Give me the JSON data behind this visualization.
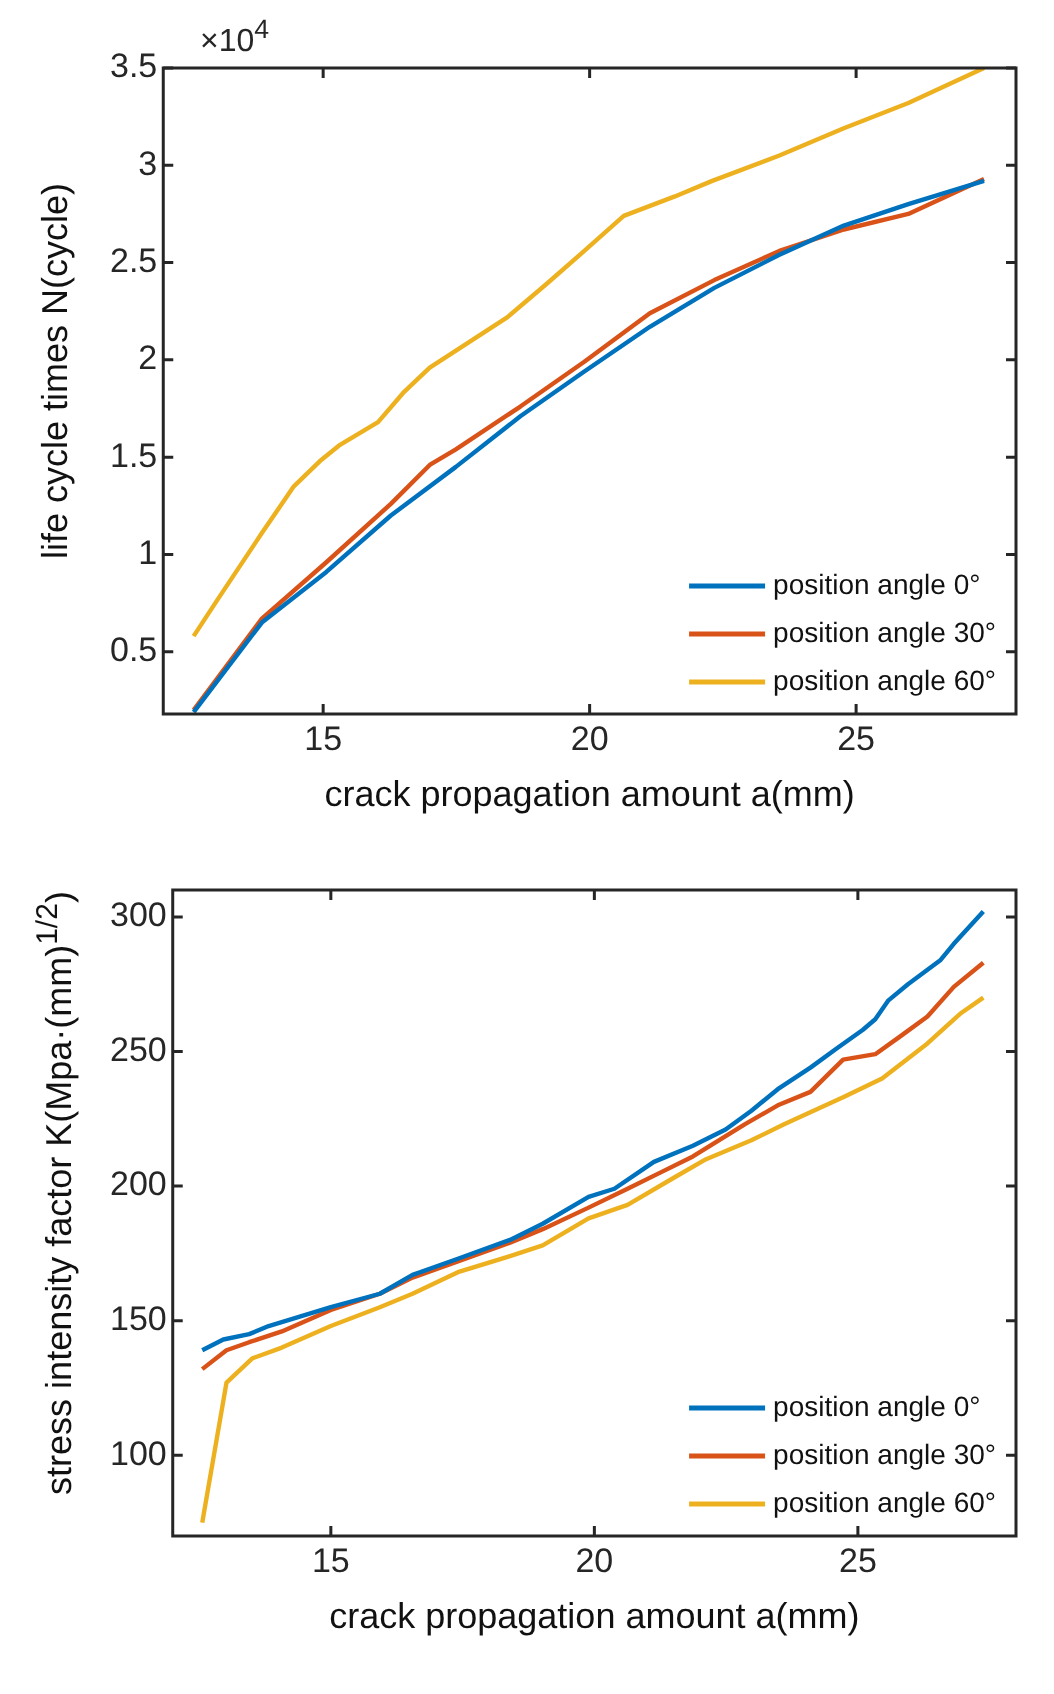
{
  "chart_data": [
    {
      "type": "line",
      "xlabel": "crack propagation amount a(mm)",
      "ylabel": "life cycle times N(cycle)",
      "annotations": [
        "×10$^{4}$"
      ],
      "xlim": [
        12,
        28
      ],
      "ylim": [
        0.18,
        3.5
      ],
      "xticks": [
        15,
        20,
        25
      ],
      "yticks": [
        0.5,
        1,
        1.5,
        2,
        2.5,
        3,
        3.5
      ],
      "grid": false,
      "legend": "bottom right",
      "series": [
        {
          "name": "position angle 0°",
          "color": "#0072bd",
          "x": [
            12.57,
            13.85,
            15.06,
            16.27,
            17.49,
            18.7,
            19.9,
            21.13,
            22.34,
            23.56,
            24.77,
            25.98,
            27.4
          ],
          "values": [
            0.19,
            0.65,
            0.91,
            1.2,
            1.45,
            1.71,
            1.94,
            2.17,
            2.37,
            2.54,
            2.69,
            2.8,
            2.92
          ]
        },
        {
          "name": "position angle 30°",
          "color": "#d95319",
          "x": [
            12.57,
            13.85,
            15.06,
            16.27,
            17.0,
            17.49,
            18.7,
            19.9,
            21.13,
            22.34,
            23.56,
            24.77,
            25.98,
            27.4
          ],
          "values": [
            0.2,
            0.67,
            0.96,
            1.26,
            1.46,
            1.54,
            1.76,
            1.99,
            2.24,
            2.41,
            2.56,
            2.67,
            2.75,
            2.93
          ]
        },
        {
          "name": "position angle 60°",
          "color": "#edb120",
          "x": [
            12.57,
            13.0,
            13.85,
            14.45,
            14.94,
            15.3,
            16.03,
            16.5,
            17.0,
            17.73,
            18.46,
            19.19,
            19.9,
            20.64,
            21.6,
            22.3,
            23.56,
            24.77,
            25.98,
            27.4
          ],
          "values": [
            0.58,
            0.76,
            1.11,
            1.35,
            1.48,
            1.56,
            1.68,
            1.83,
            1.96,
            2.09,
            2.22,
            2.39,
            2.56,
            2.74,
            2.84,
            2.92,
            3.05,
            3.19,
            3.32,
            3.5
          ]
        }
      ]
    },
    {
      "type": "line",
      "xlabel": "crack propagation amount a(mm)",
      "ylabel": "stress intensity factor K(Mpa·(mm)$^{1/2}$)",
      "xlim": [
        12,
        28
      ],
      "ylim": [
        70,
        310
      ],
      "xticks": [
        15,
        20,
        25
      ],
      "yticks": [
        100,
        150,
        200,
        250,
        300
      ],
      "grid": false,
      "legend": "bottom right",
      "series": [
        {
          "name": "position angle 0°",
          "color": "#0072bd",
          "x": [
            12.56,
            12.96,
            13.45,
            13.82,
            15,
            15.93,
            16.55,
            17.41,
            18.4,
            19.02,
            19.89,
            20.38,
            21.13,
            21.87,
            22.49,
            22.98,
            23.48,
            24.1,
            24.59,
            25.09,
            25.33,
            25.58,
            25.95,
            26.57,
            26.82,
            27.38
          ],
          "values": [
            139,
            143,
            145,
            148,
            155,
            160,
            167,
            173,
            180,
            186,
            196,
            199,
            209,
            215,
            221,
            228,
            236,
            244,
            251,
            258,
            262,
            269,
            275,
            284,
            290,
            302
          ]
        },
        {
          "name": "position angle 30°",
          "color": "#d95319",
          "x": [
            12.56,
            13.02,
            13.45,
            14.07,
            15,
            15.93,
            16.55,
            17.41,
            18.4,
            19.02,
            19.89,
            20.63,
            21.25,
            21.87,
            22.86,
            23.48,
            24.1,
            24.72,
            25.33,
            25.83,
            26.32,
            26.82,
            27.38
          ],
          "values": [
            132,
            139,
            142,
            146,
            154,
            160,
            166,
            172,
            179,
            184,
            192,
            199,
            205,
            211,
            223,
            230,
            235,
            247,
            249,
            256,
            263,
            274,
            283
          ]
        },
        {
          "name": "position angle 60°",
          "color": "#edb120",
          "x": [
            12.56,
            13.02,
            13.51,
            14.07,
            15,
            15.93,
            16.55,
            17.41,
            18.4,
            19.02,
            19.89,
            20.63,
            21.5,
            22.12,
            22.98,
            23.6,
            24.72,
            25.46,
            26.32,
            26.94,
            27.38
          ],
          "values": [
            75,
            127,
            136,
            140,
            148,
            155,
            160,
            168,
            174,
            178,
            188,
            193,
            203,
            210,
            217,
            223,
            233,
            240,
            253,
            264,
            270
          ]
        }
      ]
    }
  ]
}
